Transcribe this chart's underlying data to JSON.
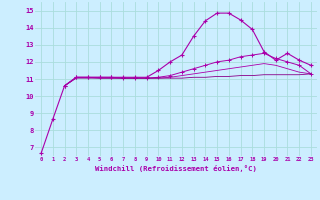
{
  "xlabel": "Windchill (Refroidissement éolien,°C)",
  "background_color": "#cceeff",
  "grid_color": "#aadddd",
  "line_color": "#aa00aa",
  "xlim": [
    -0.5,
    23.5
  ],
  "ylim": [
    6.5,
    15.5
  ],
  "yticks": [
    7,
    8,
    9,
    10,
    11,
    12,
    13,
    14,
    15
  ],
  "xticks": [
    0,
    1,
    2,
    3,
    4,
    5,
    6,
    7,
    8,
    9,
    10,
    11,
    12,
    13,
    14,
    15,
    16,
    17,
    18,
    19,
    20,
    21,
    22,
    23
  ],
  "curve1_x": [
    0,
    1,
    2,
    3,
    4,
    5,
    6,
    7,
    8,
    9,
    10,
    11,
    12,
    13,
    14,
    15,
    16,
    17,
    18,
    19,
    20,
    21,
    22,
    23
  ],
  "curve1_y": [
    6.65,
    8.65,
    10.6,
    11.1,
    11.1,
    11.1,
    11.1,
    11.1,
    11.1,
    11.1,
    11.5,
    12.0,
    12.4,
    13.5,
    14.4,
    14.85,
    14.85,
    14.45,
    13.9,
    12.6,
    12.1,
    12.5,
    12.1,
    11.8
  ],
  "curve2_x": [
    2,
    3,
    4,
    5,
    6,
    7,
    8,
    9,
    10,
    11,
    12,
    13,
    14,
    15,
    16,
    17,
    18,
    19,
    20,
    21,
    22,
    23
  ],
  "curve2_y": [
    10.6,
    11.1,
    11.1,
    11.1,
    11.1,
    11.05,
    11.05,
    11.05,
    11.1,
    11.2,
    11.4,
    11.6,
    11.8,
    12.0,
    12.1,
    12.3,
    12.4,
    12.5,
    12.2,
    12.0,
    11.8,
    11.3
  ],
  "curve3_x": [
    2,
    3,
    4,
    5,
    6,
    7,
    8,
    9,
    10,
    11,
    12,
    13,
    14,
    15,
    16,
    17,
    18,
    19,
    20,
    21,
    22,
    23
  ],
  "curve3_y": [
    10.6,
    11.1,
    11.1,
    11.05,
    11.05,
    11.05,
    11.05,
    11.05,
    11.05,
    11.1,
    11.2,
    11.3,
    11.4,
    11.5,
    11.6,
    11.7,
    11.8,
    11.9,
    11.8,
    11.6,
    11.4,
    11.3
  ],
  "curve4_x": [
    2,
    3,
    4,
    5,
    6,
    7,
    8,
    9,
    10,
    11,
    12,
    13,
    14,
    15,
    16,
    17,
    18,
    19,
    20,
    21,
    22,
    23
  ],
  "curve4_y": [
    10.6,
    11.05,
    11.05,
    11.05,
    11.05,
    11.05,
    11.05,
    11.05,
    11.05,
    11.05,
    11.05,
    11.1,
    11.1,
    11.15,
    11.15,
    11.2,
    11.2,
    11.25,
    11.25,
    11.25,
    11.25,
    11.3
  ]
}
